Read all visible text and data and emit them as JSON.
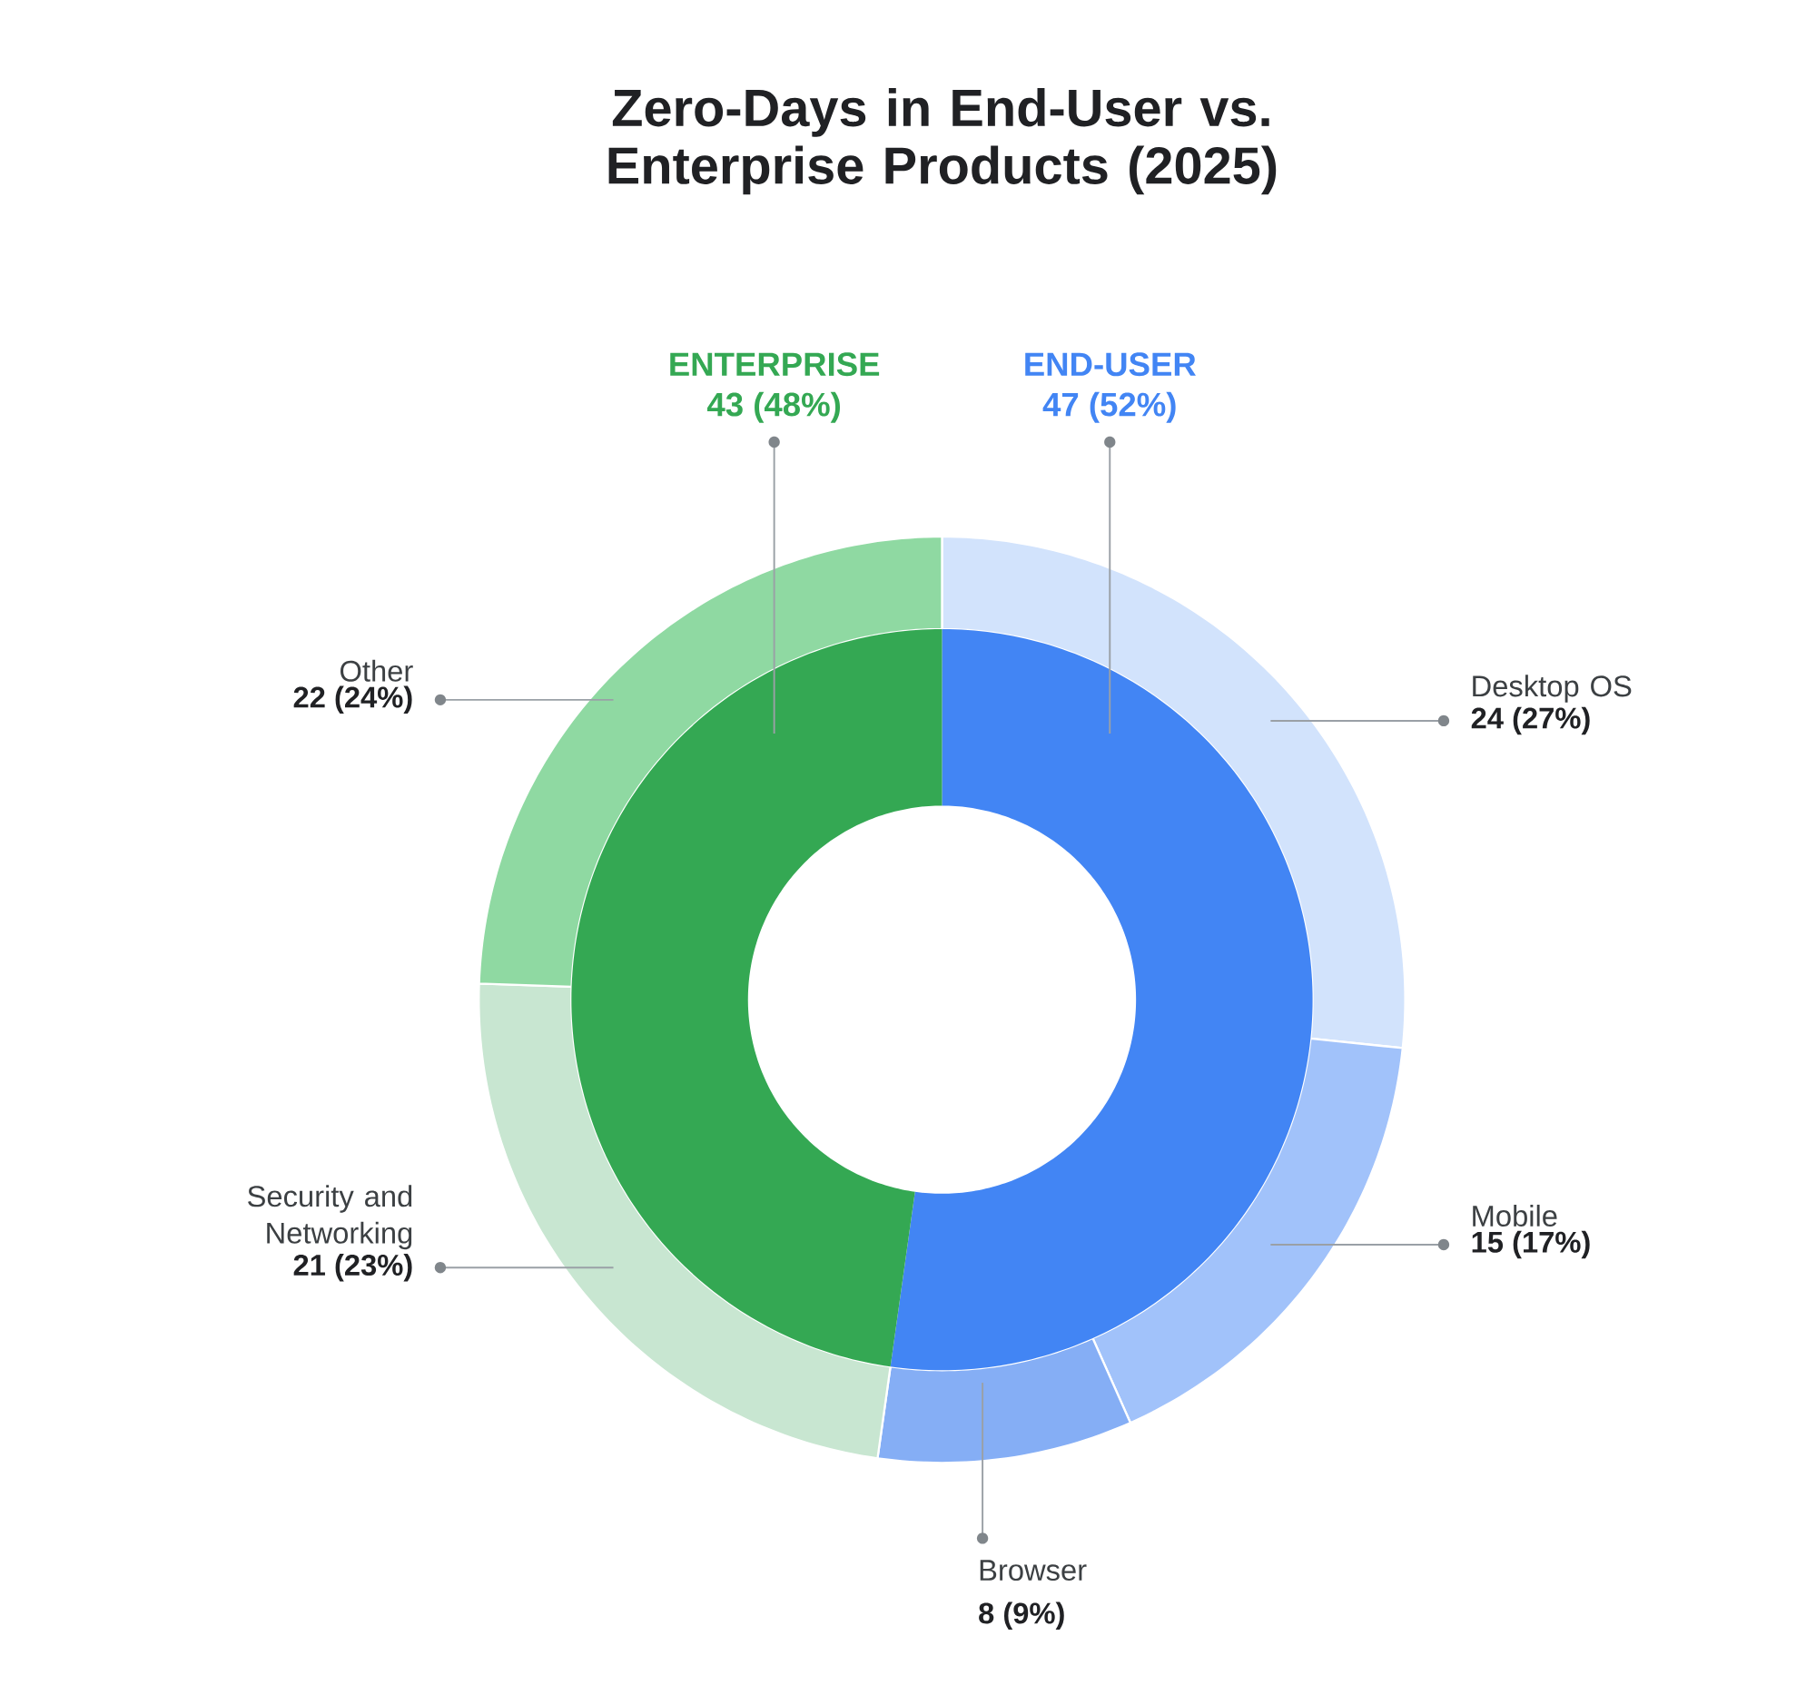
{
  "chart_data": [
    {
      "type": "donut",
      "title": "Zero-Days in End-User vs. Enterprise Products (2025)",
      "categories": [
        "END-USER",
        "ENTERPRISE"
      ],
      "values": [
        47,
        43
      ],
      "colors": [
        "#4285f4",
        "#34a853"
      ],
      "value_labels": [
        "47 (52%)",
        "43 (48%)"
      ]
    },
    {
      "type": "donut",
      "categories": [
        "Desktop OS",
        "Mobile",
        "Browser",
        "Security and Networking",
        "Other"
      ],
      "values": [
        24,
        15,
        8,
        21,
        22
      ],
      "colors": [
        "#d2e3fc",
        "#a1c2fa",
        "#85aef5",
        "#c8e6d1",
        "#8fd9a2"
      ],
      "value_labels": [
        "24 (27%)",
        "15 (17%)",
        "8 (9%)",
        "21 (23%)",
        "22 (24%)"
      ]
    }
  ]
}
